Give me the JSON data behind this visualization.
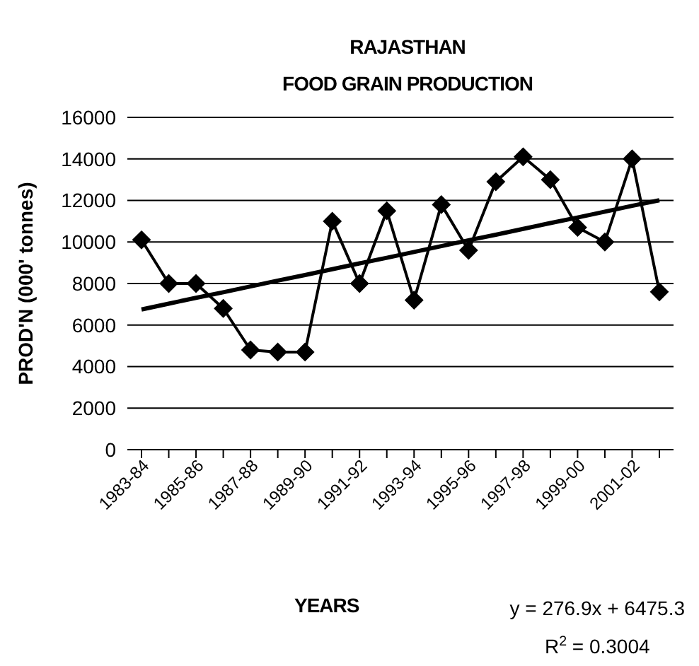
{
  "chart_data": {
    "type": "line",
    "title": "RAJASTHAN",
    "subtitle": "FOOD GRAIN PRODUCTION",
    "xlabel": "YEARS",
    "ylabel": "PROD'N (000' tonnes)",
    "categories": [
      "1983-84",
      null,
      "1985-86",
      null,
      "1987-88",
      null,
      "1989-90",
      null,
      "1991-92",
      null,
      "1993-94",
      null,
      "1995-96",
      null,
      "1997-98",
      null,
      "1999-00",
      null,
      "2001-02",
      null
    ],
    "series": [
      {
        "color": "#000000",
        "marker": "diamond",
        "values": [
          10100,
          8000,
          8000,
          6800,
          4800,
          4700,
          4700,
          11000,
          8000,
          11500,
          7200,
          11800,
          9600,
          12900,
          14100,
          13000,
          10700,
          10000,
          14000,
          7600
        ]
      },
      {
        "color": "#000000",
        "marker": "none",
        "values": [
          6750,
          7030,
          7310,
          7580,
          7860,
          8140,
          8410,
          8690,
          8970,
          9240,
          9520,
          9800,
          10080,
          10350,
          10630,
          10910,
          11180,
          11460,
          11740,
          12010
        ]
      }
    ],
    "ylim": [
      0,
      16000
    ],
    "yticks": [
      0,
      2000,
      4000,
      6000,
      8000,
      10000,
      12000,
      14000,
      16000
    ],
    "grid": "y",
    "annotations": [
      "y = 276.9x + 6475.3",
      "R$^{2}$ = 0.3004"
    ]
  }
}
